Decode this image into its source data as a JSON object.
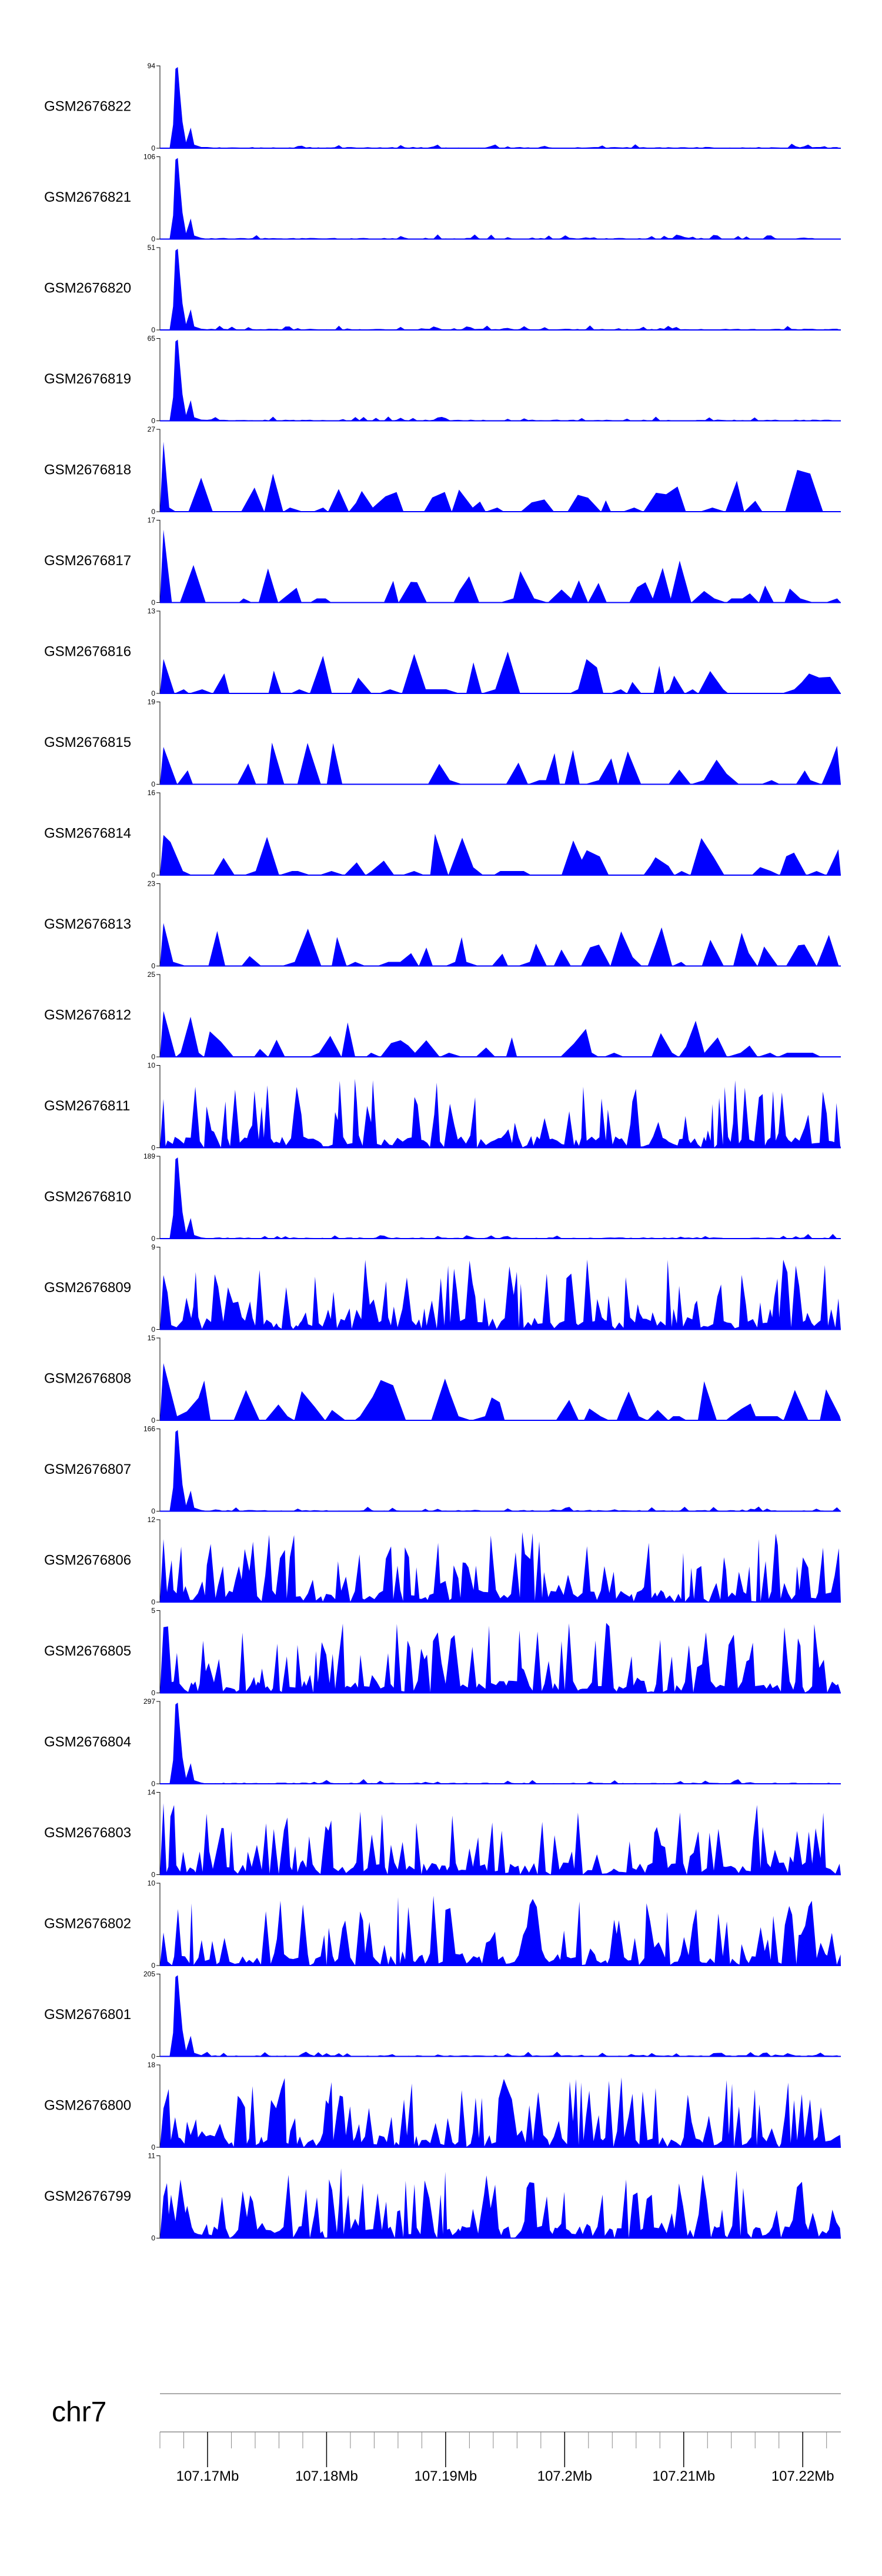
{
  "colors": {
    "signal": "#0000ff",
    "axis": "#000000",
    "ruler": "#aaaaaa"
  },
  "chart_data": {
    "type": "area",
    "chromosome": "chr7",
    "x_range_mb": [
      107.166,
      107.2232
    ],
    "x_axis": {
      "ticks": [
        107.17,
        107.18,
        107.19,
        107.2,
        107.21,
        107.22
      ],
      "tick_labels": [
        "107.17Mb",
        "107.18Mb",
        "107.19Mb",
        "107.2Mb",
        "107.21Mb",
        "107.22Mb"
      ],
      "minor_tick_step_mb": 0.002
    },
    "tracks": [
      {
        "name": "GSM2676822",
        "ymax": "94",
        "ymax_value": 94,
        "ymin": "0",
        "profile": "peak",
        "peak_mb": 107.1675
      },
      {
        "name": "GSM2676821",
        "ymax": "106",
        "ymax_value": 106,
        "ymin": "0",
        "profile": "peak",
        "peak_mb": 107.1675
      },
      {
        "name": "GSM2676820",
        "ymax": "51",
        "ymax_value": 51,
        "ymin": "0",
        "profile": "peak",
        "peak_mb": 107.1675
      },
      {
        "name": "GSM2676819",
        "ymax": "65",
        "ymax_value": 65,
        "ymin": "0",
        "profile": "peak",
        "peak_mb": 107.1675
      },
      {
        "name": "GSM2676818",
        "ymax": "27",
        "ymax_value": 27,
        "ymin": "0",
        "profile": "sparse"
      },
      {
        "name": "GSM2676817",
        "ymax": "17",
        "ymax_value": 17,
        "ymin": "0",
        "profile": "sparse"
      },
      {
        "name": "GSM2676816",
        "ymax": "13",
        "ymax_value": 13,
        "ymin": "0",
        "profile": "sparse"
      },
      {
        "name": "GSM2676815",
        "ymax": "19",
        "ymax_value": 19,
        "ymin": "0",
        "profile": "sparse"
      },
      {
        "name": "GSM2676814",
        "ymax": "16",
        "ymax_value": 16,
        "ymin": "0",
        "profile": "sparse"
      },
      {
        "name": "GSM2676813",
        "ymax": "23",
        "ymax_value": 23,
        "ymin": "0",
        "profile": "sparse"
      },
      {
        "name": "GSM2676812",
        "ymax": "25",
        "ymax_value": 25,
        "ymin": "0",
        "profile": "sparse"
      },
      {
        "name": "GSM2676811",
        "ymax": "10",
        "ymax_value": 10,
        "ymin": "0",
        "profile": "dense"
      },
      {
        "name": "GSM2676810",
        "ymax": "189",
        "ymax_value": 189,
        "ymin": "0",
        "profile": "peak",
        "peak_mb": 107.1675
      },
      {
        "name": "GSM2676809",
        "ymax": "9",
        "ymax_value": 9,
        "ymin": "0",
        "profile": "dense"
      },
      {
        "name": "GSM2676808",
        "ymax": "15",
        "ymax_value": 15,
        "ymin": "0",
        "profile": "sparse"
      },
      {
        "name": "GSM2676807",
        "ymax": "166",
        "ymax_value": 166,
        "ymin": "0",
        "profile": "peak",
        "peak_mb": 107.1675
      },
      {
        "name": "GSM2676806",
        "ymax": "12",
        "ymax_value": 12,
        "ymin": "0",
        "profile": "dense"
      },
      {
        "name": "GSM2676805",
        "ymax": "5",
        "ymax_value": 5,
        "ymin": "0",
        "profile": "dense"
      },
      {
        "name": "GSM2676804",
        "ymax": "297",
        "ymax_value": 297,
        "ymin": "0",
        "profile": "peak",
        "peak_mb": 107.1675
      },
      {
        "name": "GSM2676803",
        "ymax": "14",
        "ymax_value": 14,
        "ymin": "0",
        "profile": "dense"
      },
      {
        "name": "GSM2676802",
        "ymax": "10",
        "ymax_value": 10,
        "ymin": "0",
        "profile": "dense"
      },
      {
        "name": "GSM2676801",
        "ymax": "205",
        "ymax_value": 205,
        "ymin": "0",
        "profile": "peak",
        "peak_mb": 107.1675
      },
      {
        "name": "GSM2676800",
        "ymax": "18",
        "ymax_value": 18,
        "ymin": "0",
        "profile": "dense"
      },
      {
        "name": "GSM2676799",
        "ymax": "11",
        "ymax_value": 11,
        "ymin": "0",
        "profile": "dense"
      }
    ]
  }
}
